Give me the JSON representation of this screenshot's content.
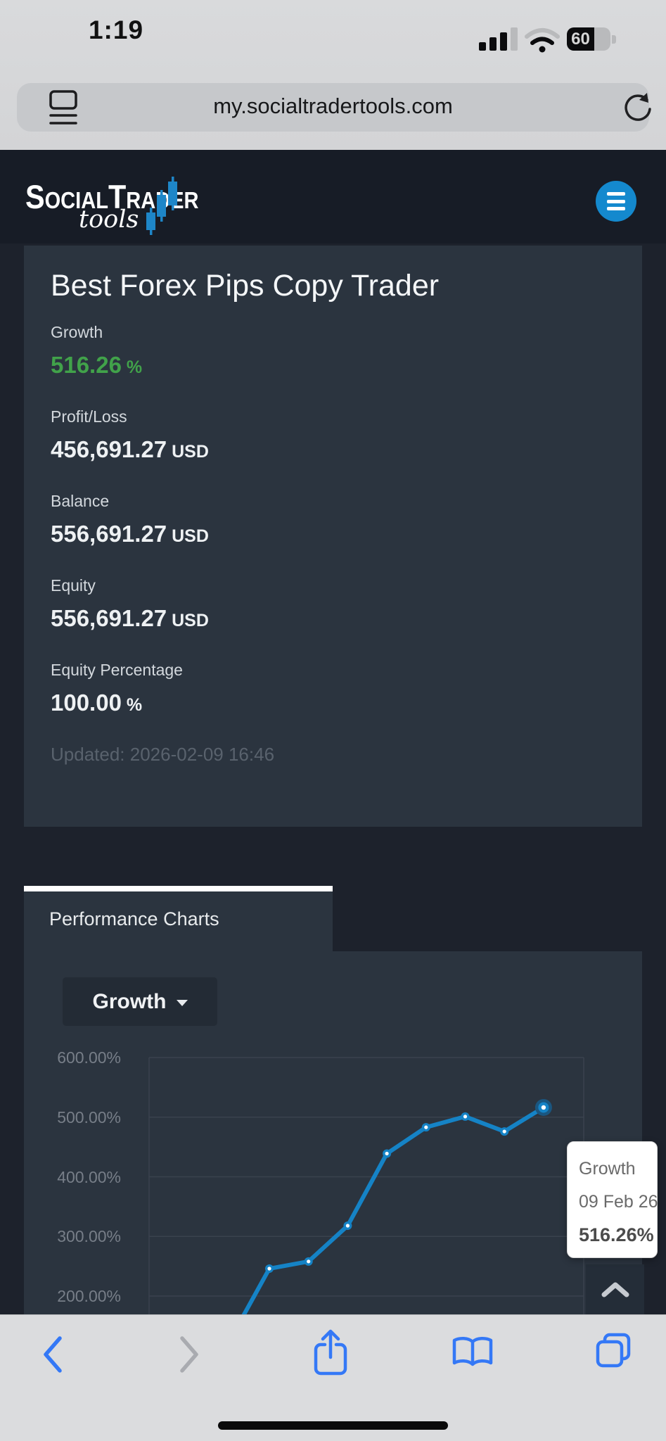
{
  "status_bar": {
    "time": "1:19",
    "battery_level": "60"
  },
  "browser": {
    "url": "my.socialtradertools.com"
  },
  "header": {
    "logo_primary_big1": "S",
    "logo_primary_rest1": "OCIAL",
    "logo_primary_big2": "T",
    "logo_primary_rest2": "RADER",
    "logo_secondary": "tools"
  },
  "account": {
    "title": "Best Forex Pips Copy Trader",
    "stats": [
      {
        "label": "Growth",
        "value": "516.26",
        "suffix": "%",
        "color": "green"
      },
      {
        "label": "Profit/Loss",
        "value": "456,691.27",
        "suffix": "USD"
      },
      {
        "label": "Balance",
        "value": "556,691.27",
        "suffix": "USD"
      },
      {
        "label": "Equity",
        "value": "556,691.27",
        "suffix": "USD"
      },
      {
        "label": "Equity Percentage",
        "value": "100.00",
        "suffix": "%"
      }
    ],
    "updated": "Updated: 2026-02-09 16:46"
  },
  "charts_section": {
    "tab_label": "Performance Charts",
    "metric_selector": "Growth"
  },
  "chart_data": {
    "type": "line",
    "title": "Growth",
    "y_tick_labels": [
      "600.00%",
      "500.00%",
      "400.00%",
      "300.00%",
      "200.00%"
    ],
    "y_gridline_values": [
      600,
      500,
      400,
      300,
      200
    ],
    "visible_ylim": [
      200,
      600
    ],
    "grid": true,
    "legend_position": "none",
    "series": [
      {
        "name": "Growth",
        "values": [
          127,
          246,
          258,
          318,
          439,
          483,
          501,
          476,
          516.26
        ]
      }
    ],
    "last_point": {
      "date": "09 Feb 26",
      "value": "516.26%"
    }
  },
  "tooltip": {
    "title": "Growth",
    "date": "09 Feb 26",
    "value": "516.26%"
  },
  "colors": {
    "accent_blue": "#1583c6",
    "point_halo_blue": "#1a5680",
    "growth_green": "#41a24a",
    "panel_bg": "#2b343f",
    "page_bg": "#1d222c",
    "header_bg": "#171c26",
    "grid_line": "#3a424e",
    "axis_label": "#777e88",
    "ios_blue": "#3478f6",
    "ios_disabled": "#a9abb0",
    "logo_candle_blue": "#1e86c8",
    "menu_button_blue": "#1489ce"
  }
}
